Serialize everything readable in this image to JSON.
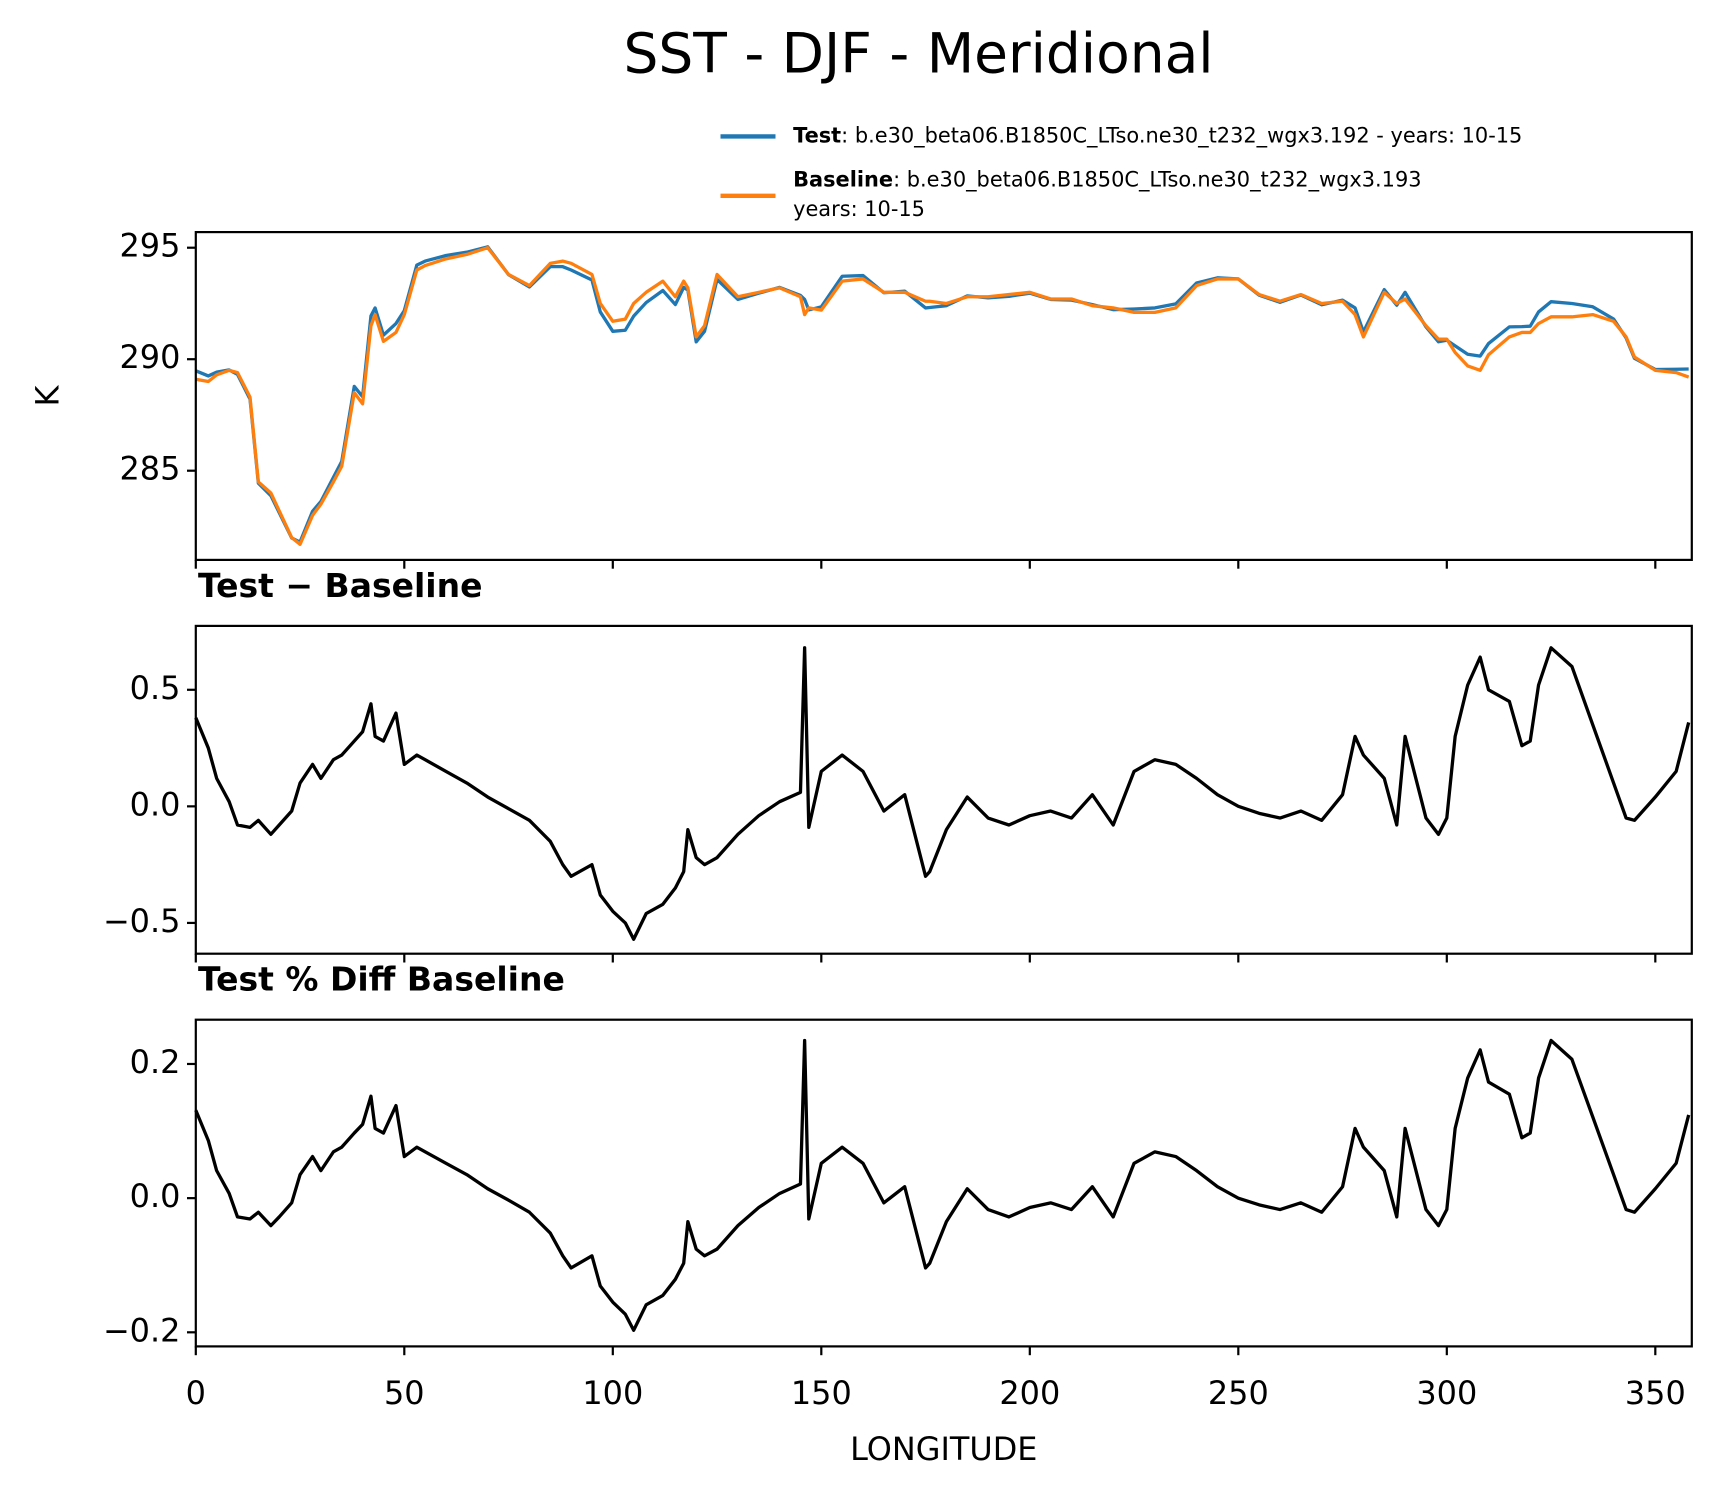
{
  "title": "SST - DJF - Meridional",
  "chart_data": [
    {
      "type": "line",
      "ylabel": "K",
      "x": [
        0,
        3,
        5,
        8,
        10,
        13,
        15,
        18,
        20,
        23,
        25,
        28,
        30,
        33,
        35,
        38,
        40,
        42,
        43,
        45,
        48,
        50,
        53,
        55,
        60,
        65,
        70,
        75,
        80,
        85,
        88,
        90,
        95,
        97,
        100,
        103,
        105,
        108,
        112,
        115,
        117,
        118,
        120,
        122,
        125,
        130,
        135,
        140,
        145,
        146,
        147,
        150,
        155,
        160,
        165,
        170,
        175,
        176,
        180,
        185,
        190,
        195,
        200,
        205,
        210,
        215,
        220,
        225,
        230,
        235,
        240,
        245,
        250,
        255,
        260,
        265,
        270,
        275,
        278,
        280,
        285,
        288,
        290,
        295,
        298,
        300,
        302,
        305,
        308,
        310,
        315,
        318,
        320,
        322,
        325,
        330,
        335,
        340,
        343,
        345,
        350,
        355,
        358
      ],
      "series": [
        {
          "name": "Test",
          "label_lines": [
            ": b.e30_beta06.B1850C_LTso.ne30_t232_wgx3.192 - years: 10-15"
          ],
          "color": "#1f77b4",
          "values": [
            289.48,
            289.25,
            289.42,
            289.52,
            289.32,
            288.21,
            284.44,
            283.88,
            283.12,
            281.98,
            281.8,
            283.18,
            283.62,
            284.7,
            285.42,
            288.78,
            288.32,
            291.94,
            292.3,
            291.08,
            291.6,
            292.18,
            294.22,
            294.4,
            294.65,
            294.8,
            295.04,
            293.79,
            293.24,
            294.15,
            294.15,
            294.0,
            293.55,
            292.12,
            291.25,
            291.3,
            291.93,
            292.54,
            293.08,
            292.45,
            293.22,
            293.1,
            290.78,
            291.25,
            293.58,
            292.68,
            292.96,
            293.22,
            292.86,
            292.68,
            292.21,
            292.35,
            293.72,
            293.75,
            292.98,
            293.05,
            292.3,
            292.32,
            292.4,
            292.84,
            292.75,
            292.82,
            292.96,
            292.68,
            292.65,
            292.45,
            292.22,
            292.25,
            292.3,
            292.48,
            293.42,
            293.65,
            293.6,
            292.87,
            292.55,
            292.88,
            292.44,
            292.65,
            292.3,
            291.22,
            293.12,
            292.42,
            293.0,
            291.45,
            290.78,
            290.85,
            290.6,
            290.22,
            290.14,
            290.7,
            291.45,
            291.46,
            291.48,
            292.12,
            292.58,
            292.5,
            292.35,
            291.8,
            290.95,
            290.04,
            289.54,
            289.55,
            289.56
          ]
        },
        {
          "name": "Baseline",
          "label_lines": [
            ": b.e30_beta06.B1850C_LTso.ne30_t232_wgx3.193",
            "years: 10-15"
          ],
          "color": "#ff7f0e",
          "values": [
            289.1,
            289.0,
            289.3,
            289.5,
            289.4,
            288.3,
            284.5,
            284.0,
            283.2,
            282.0,
            281.7,
            283.0,
            283.5,
            284.5,
            285.2,
            288.5,
            288.0,
            291.5,
            292.0,
            290.8,
            291.2,
            292.0,
            294.0,
            294.2,
            294.5,
            294.7,
            295.0,
            293.8,
            293.3,
            294.3,
            294.4,
            294.3,
            293.8,
            292.5,
            291.7,
            291.8,
            292.5,
            293.0,
            293.5,
            292.8,
            293.5,
            293.2,
            291.0,
            291.5,
            293.8,
            292.8,
            293.0,
            293.2,
            292.8,
            292.0,
            292.3,
            292.2,
            293.5,
            293.6,
            293.0,
            293.0,
            292.6,
            292.6,
            292.5,
            292.8,
            292.8,
            292.9,
            293.0,
            292.7,
            292.7,
            292.4,
            292.3,
            292.1,
            292.1,
            292.3,
            293.3,
            293.6,
            293.6,
            292.9,
            292.6,
            292.9,
            292.5,
            292.6,
            292.0,
            291.0,
            293.0,
            292.5,
            292.7,
            291.5,
            290.9,
            290.9,
            290.3,
            289.7,
            289.5,
            290.2,
            291.0,
            291.2,
            291.2,
            291.6,
            291.9,
            291.9,
            292.0,
            291.7,
            291.0,
            290.1,
            289.5,
            289.4,
            289.2
          ]
        }
      ],
      "xlim": [
        0,
        358.75
      ],
      "ylim": [
        281.0,
        295.7
      ],
      "yticks": [
        285,
        290,
        295
      ],
      "xticks": [
        0,
        50,
        100,
        150,
        200,
        250,
        300,
        350
      ]
    },
    {
      "type": "line",
      "title": "Test − Baseline",
      "color": "#000000",
      "x": [
        0,
        3,
        5,
        8,
        10,
        13,
        15,
        18,
        20,
        23,
        25,
        28,
        30,
        33,
        35,
        38,
        40,
        42,
        43,
        45,
        48,
        50,
        53,
        55,
        60,
        65,
        70,
        75,
        80,
        85,
        88,
        90,
        95,
        97,
        100,
        103,
        105,
        108,
        112,
        115,
        117,
        118,
        120,
        122,
        125,
        130,
        135,
        140,
        145,
        146,
        147,
        150,
        155,
        160,
        165,
        170,
        175,
        176,
        180,
        185,
        190,
        195,
        200,
        205,
        210,
        215,
        220,
        225,
        230,
        235,
        240,
        245,
        250,
        255,
        260,
        265,
        270,
        275,
        278,
        280,
        285,
        288,
        290,
        295,
        298,
        300,
        302,
        305,
        308,
        310,
        315,
        318,
        320,
        322,
        325,
        330,
        335,
        340,
        343,
        345,
        350,
        355,
        358
      ],
      "values": [
        0.38,
        0.25,
        0.12,
        0.02,
        -0.08,
        -0.09,
        -0.06,
        -0.12,
        -0.08,
        -0.02,
        0.1,
        0.18,
        0.12,
        0.2,
        0.22,
        0.28,
        0.32,
        0.44,
        0.3,
        0.28,
        0.4,
        0.18,
        0.22,
        0.2,
        0.15,
        0.1,
        0.04,
        -0.01,
        -0.06,
        -0.15,
        -0.25,
        -0.3,
        -0.25,
        -0.38,
        -0.45,
        -0.5,
        -0.57,
        -0.46,
        -0.42,
        -0.35,
        -0.28,
        -0.1,
        -0.22,
        -0.25,
        -0.22,
        -0.12,
        -0.04,
        0.02,
        0.06,
        0.68,
        -0.09,
        0.15,
        0.22,
        0.15,
        -0.02,
        0.05,
        -0.3,
        -0.28,
        -0.1,
        0.04,
        -0.05,
        -0.08,
        -0.04,
        -0.02,
        -0.05,
        0.05,
        -0.08,
        0.15,
        0.2,
        0.18,
        0.12,
        0.05,
        0.0,
        -0.03,
        -0.05,
        -0.02,
        -0.06,
        0.05,
        0.3,
        0.22,
        0.12,
        -0.08,
        0.3,
        -0.05,
        -0.12,
        -0.05,
        0.3,
        0.52,
        0.64,
        0.5,
        0.45,
        0.26,
        0.28,
        0.52,
        0.68,
        0.6,
        0.35,
        0.1,
        -0.05,
        -0.06,
        0.04,
        0.15,
        0.36
      ],
      "xlim": [
        0,
        358.75
      ],
      "ylim": [
        -0.632,
        0.774
      ],
      "yticks": [
        {
          "value": -0.5,
          "label": "−0.5"
        },
        {
          "value": 0,
          "label": "0.0"
        },
        0.5
      ],
      "xticks": [
        0,
        50,
        100,
        150,
        200,
        250,
        300,
        350
      ]
    },
    {
      "type": "line",
      "title": "Test % Diff Baseline",
      "color": "#000000",
      "xlabel": "LONGITUDE",
      "x": [
        0,
        3,
        5,
        8,
        10,
        13,
        15,
        18,
        20,
        23,
        25,
        28,
        30,
        33,
        35,
        38,
        40,
        42,
        43,
        45,
        48,
        50,
        53,
        55,
        60,
        65,
        70,
        75,
        80,
        85,
        88,
        90,
        95,
        97,
        100,
        103,
        105,
        108,
        112,
        115,
        117,
        118,
        120,
        122,
        125,
        130,
        135,
        140,
        145,
        146,
        147,
        150,
        155,
        160,
        165,
        170,
        175,
        176,
        180,
        185,
        190,
        195,
        200,
        205,
        210,
        215,
        220,
        225,
        230,
        235,
        240,
        245,
        250,
        255,
        260,
        265,
        270,
        275,
        278,
        280,
        285,
        288,
        290,
        295,
        298,
        300,
        302,
        305,
        308,
        310,
        315,
        318,
        320,
        322,
        325,
        330,
        335,
        340,
        343,
        345,
        350,
        355,
        358
      ],
      "values": [
        0.131,
        0.086,
        0.041,
        0.007,
        -0.028,
        -0.031,
        -0.021,
        -0.041,
        -0.028,
        -0.007,
        0.035,
        0.062,
        0.041,
        0.069,
        0.076,
        0.097,
        0.11,
        0.152,
        0.104,
        0.097,
        0.138,
        0.062,
        0.076,
        0.069,
        0.052,
        0.035,
        0.014,
        -0.003,
        -0.021,
        -0.052,
        -0.086,
        -0.104,
        -0.086,
        -0.131,
        -0.155,
        -0.173,
        -0.197,
        -0.159,
        -0.145,
        -0.121,
        -0.097,
        -0.035,
        -0.076,
        -0.086,
        -0.076,
        -0.041,
        -0.014,
        0.007,
        0.021,
        0.235,
        -0.031,
        0.052,
        0.076,
        0.052,
        -0.007,
        0.017,
        -0.104,
        -0.097,
        -0.035,
        0.014,
        -0.017,
        -0.028,
        -0.014,
        -0.007,
        -0.017,
        0.017,
        -0.028,
        0.052,
        0.069,
        0.062,
        0.041,
        0.017,
        0.0,
        -0.01,
        -0.017,
        -0.007,
        -0.021,
        0.017,
        0.104,
        0.076,
        0.041,
        -0.028,
        0.104,
        -0.017,
        -0.041,
        -0.017,
        0.104,
        0.179,
        0.221,
        0.173,
        0.155,
        0.09,
        0.097,
        0.179,
        0.235,
        0.207,
        0.121,
        0.035,
        -0.017,
        -0.021,
        0.014,
        0.052,
        0.124
      ],
      "xlim": [
        0,
        358.75
      ],
      "ylim": [
        -0.221,
        0.266
      ],
      "yticks": [
        {
          "value": -0.2,
          "label": "−0.2"
        },
        {
          "value": 0,
          "label": "0.0"
        },
        0.2
      ],
      "xticks": [
        0,
        50,
        100,
        150,
        200,
        250,
        300,
        350
      ]
    }
  ]
}
